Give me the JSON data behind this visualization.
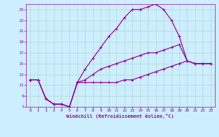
{
  "xlabel": "Windchill (Refroidissement éolien,°C)",
  "background_color": "#cceeff",
  "grid_color": "#b8ddd8",
  "line_color": "#990099",
  "xlim": [
    -0.5,
    23.5
  ],
  "ylim": [
    7,
    26
  ],
  "xticks": [
    0,
    1,
    2,
    3,
    4,
    5,
    6,
    7,
    8,
    9,
    10,
    11,
    12,
    13,
    14,
    15,
    16,
    17,
    18,
    19,
    20,
    21,
    22,
    23
  ],
  "yticks": [
    7,
    9,
    11,
    13,
    15,
    17,
    19,
    21,
    23,
    25
  ],
  "line_high_x": [
    0,
    1,
    2,
    3,
    4,
    5,
    6,
    7,
    8,
    9,
    10,
    11,
    12,
    13,
    14,
    15,
    16,
    17,
    18,
    19,
    20,
    21,
    22,
    23
  ],
  "line_high_y": [
    12,
    12,
    8.5,
    7.5,
    7.5,
    7,
    11.5,
    14,
    16,
    18,
    20,
    21.5,
    23.5,
    25,
    25,
    25.5,
    26,
    25,
    23,
    20,
    15.5,
    15,
    15,
    15
  ],
  "line_mid_x": [
    0,
    1,
    2,
    3,
    4,
    5,
    6,
    7,
    8,
    9,
    10,
    11,
    12,
    13,
    14,
    15,
    16,
    17,
    18,
    19,
    20,
    21,
    22,
    23
  ],
  "line_mid_y": [
    12,
    12,
    8.5,
    7.5,
    7.5,
    7,
    11.5,
    12,
    13,
    14,
    14.5,
    15,
    15.5,
    16,
    16.5,
    17,
    17,
    17.5,
    18,
    18.5,
    15.5,
    15,
    15,
    15
  ],
  "line_low_x": [
    0,
    1,
    2,
    3,
    4,
    5,
    6,
    7,
    8,
    9,
    10,
    11,
    12,
    13,
    14,
    15,
    16,
    17,
    18,
    19,
    20,
    21,
    22,
    23
  ],
  "line_low_y": [
    12,
    12,
    8.5,
    7.5,
    7.5,
    7,
    11.5,
    11.5,
    11.5,
    11.5,
    11.5,
    11.5,
    12,
    12,
    12.5,
    13,
    13.5,
    14,
    14.5,
    15,
    15.5,
    15,
    15,
    15
  ]
}
